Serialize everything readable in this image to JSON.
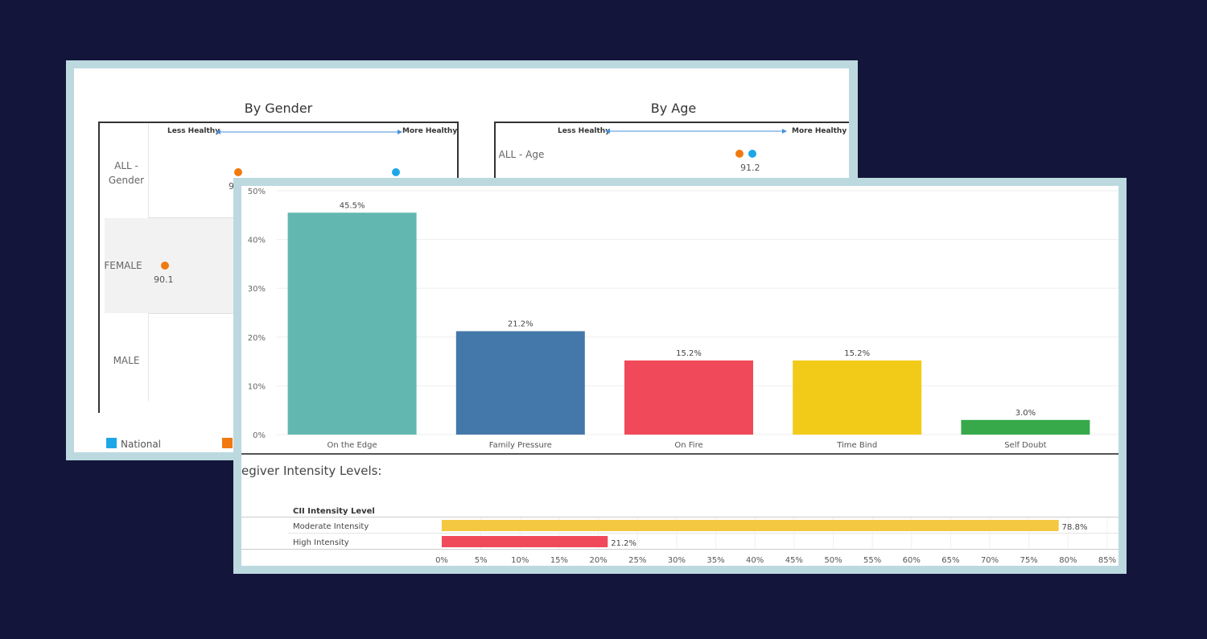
{
  "back_panel": {
    "gender": {
      "title": "By Gender",
      "less_label": "Less Healthy",
      "more_label": "More Healthy",
      "rows": [
        "ALL - Gender",
        "FEMALE",
        "MALE"
      ],
      "female_value": "90.1",
      "all_value_partial": "9"
    },
    "age": {
      "title": "By Age",
      "less_label": "Less Healthy",
      "more_label": "More Healthy",
      "row": "ALL - Age",
      "value": "91.2"
    },
    "legend": {
      "national": "National"
    },
    "colors": {
      "national": "#1ea7e6",
      "sample": "#f07a10",
      "arrow": "#4a90d9"
    }
  },
  "chart_data": [
    {
      "type": "bar",
      "categories": [
        "On the Edge",
        "Family Pressure",
        "On Fire",
        "Time Bind",
        "Self Doubt"
      ],
      "values": [
        45.5,
        21.2,
        15.2,
        15.2,
        3.0
      ],
      "data_labels": [
        "45.5%",
        "21.2%",
        "15.2%",
        "15.2%",
        "3.0%"
      ],
      "colors": [
        "#62b8b0",
        "#4477aa",
        "#f04a5a",
        "#f2cb18",
        "#37a94a"
      ],
      "ylim": [
        0,
        50
      ],
      "yticks": [
        0,
        10,
        20,
        30,
        40,
        50
      ],
      "ytick_labels": [
        "0%",
        "10%",
        "20%",
        "30%",
        "40%",
        "50%"
      ],
      "title": "",
      "xlabel": "",
      "ylabel": ""
    },
    {
      "type": "bar",
      "orientation": "horizontal",
      "title": "egiver Intensity Levels:",
      "header": "CII Intensity Level",
      "categories": [
        "Moderate Intensity",
        "High Intensity"
      ],
      "values": [
        78.8,
        21.2
      ],
      "data_labels": [
        "78.8%",
        "21.2%"
      ],
      "colors": [
        "#f5c842",
        "#f04a5a"
      ],
      "xlim": [
        0,
        85
      ],
      "xticks": [
        0,
        5,
        10,
        15,
        20,
        25,
        30,
        35,
        40,
        45,
        50,
        55,
        60,
        65,
        70,
        75,
        80,
        85
      ],
      "xtick_labels": [
        "0%",
        "5%",
        "10%",
        "15%",
        "20%",
        "25%",
        "30%",
        "35%",
        "40%",
        "45%",
        "50%",
        "55%",
        "60%",
        "65%",
        "70%",
        "75%",
        "80%",
        "85%"
      ]
    }
  ]
}
